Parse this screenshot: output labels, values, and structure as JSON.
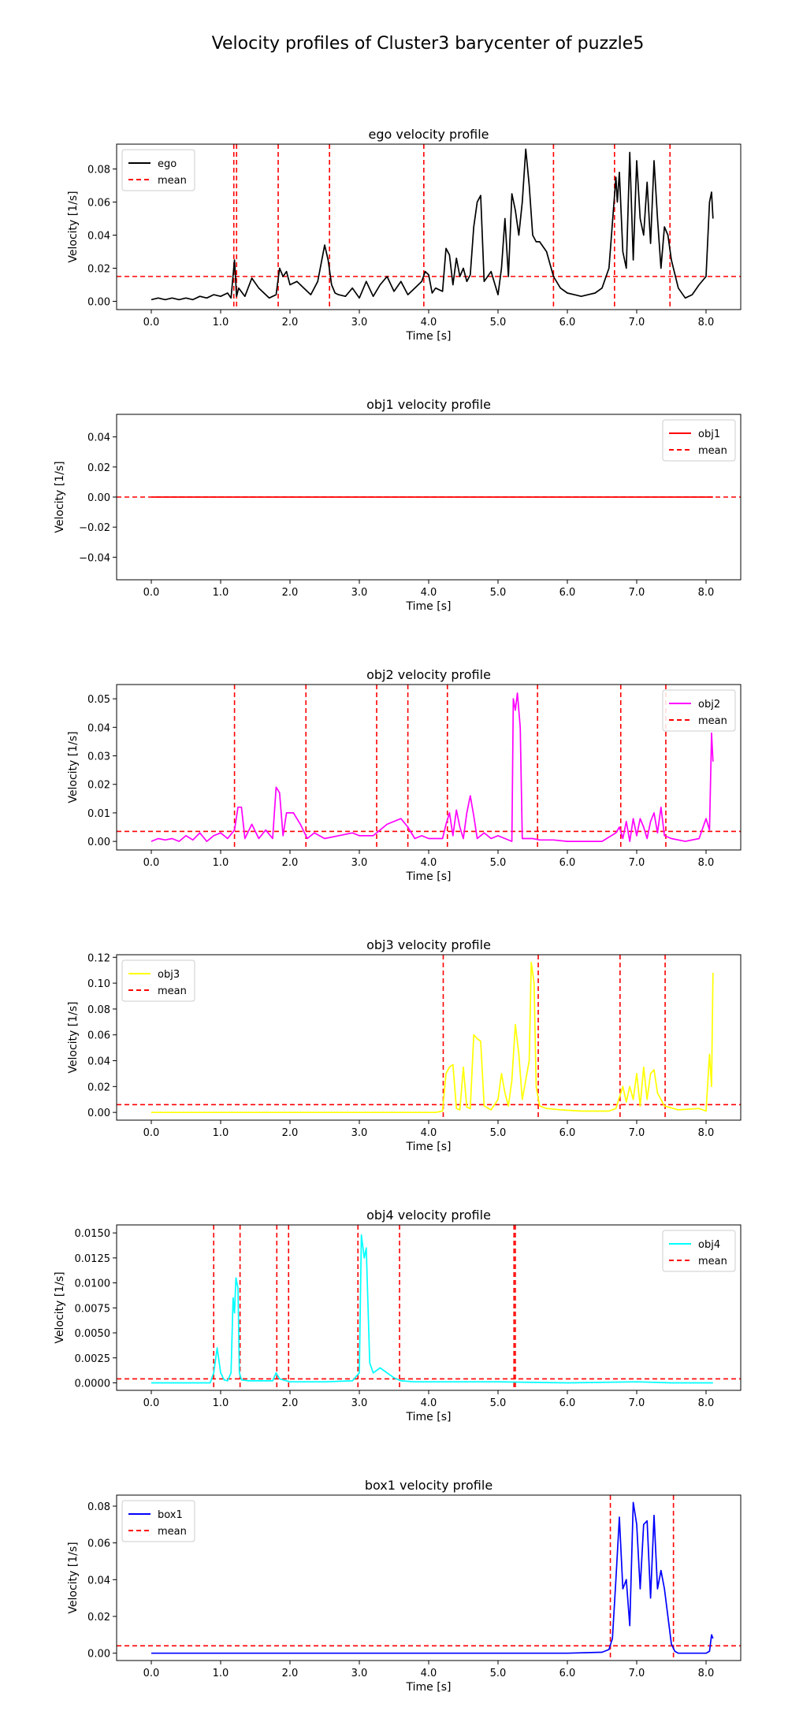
{
  "figure": {
    "title": "Velocity profiles of  Cluster3 barycenter of puzzle5"
  },
  "chart_data": [
    {
      "type": "line",
      "title": "ego velocity profile",
      "xlabel": "Time [s]",
      "ylabel": "Velocity [1/s]",
      "xlim": [
        -0.5,
        8.5
      ],
      "ylim": [
        -0.005,
        0.095
      ],
      "xticks": [
        0,
        1,
        2,
        3,
        4,
        5,
        6,
        7,
        8
      ],
      "xtick_labels": [
        "0.0",
        "1.0",
        "2.0",
        "3.0",
        "4.0",
        "5.0",
        "6.0",
        "7.0",
        "8.0"
      ],
      "yticks": [
        0,
        0.02,
        0.04,
        0.06,
        0.08
      ],
      "ytick_labels": [
        "0.00",
        "0.02",
        "0.04",
        "0.06",
        "0.08"
      ],
      "legend": {
        "position": "upper-left",
        "entries": [
          "ego",
          "mean"
        ]
      },
      "series": [
        {
          "name": "ego",
          "color": "#000000",
          "x": [
            0,
            0.1,
            0.2,
            0.3,
            0.4,
            0.5,
            0.6,
            0.7,
            0.8,
            0.9,
            1.0,
            1.1,
            1.15,
            1.2,
            1.23,
            1.26,
            1.35,
            1.45,
            1.55,
            1.7,
            1.8,
            1.85,
            1.9,
            1.95,
            2.0,
            2.1,
            2.2,
            2.3,
            2.4,
            2.5,
            2.55,
            2.6,
            2.65,
            2.7,
            2.8,
            2.9,
            3.0,
            3.1,
            3.2,
            3.3,
            3.4,
            3.5,
            3.6,
            3.7,
            3.8,
            3.9,
            3.95,
            4.0,
            4.05,
            4.1,
            4.2,
            4.25,
            4.3,
            4.35,
            4.4,
            4.45,
            4.5,
            4.55,
            4.6,
            4.65,
            4.7,
            4.75,
            4.8,
            4.9,
            5.0,
            5.05,
            5.1,
            5.15,
            5.2,
            5.25,
            5.3,
            5.35,
            5.4,
            5.45,
            5.5,
            5.55,
            5.6,
            5.7,
            5.8,
            5.9,
            6.0,
            6.1,
            6.2,
            6.3,
            6.4,
            6.5,
            6.6,
            6.7,
            6.72,
            6.75,
            6.8,
            6.85,
            6.9,
            6.95,
            7.0,
            7.05,
            7.1,
            7.15,
            7.2,
            7.25,
            7.3,
            7.35,
            7.4,
            7.45,
            7.5,
            7.6,
            7.7,
            7.8,
            7.9,
            8.0,
            8.05,
            8.08,
            8.1
          ],
          "y": [
            0.001,
            0.002,
            0.001,
            0.002,
            0.001,
            0.002,
            0.001,
            0.003,
            0.002,
            0.004,
            0.003,
            0.005,
            0.002,
            0.025,
            0.003,
            0.008,
            0.003,
            0.014,
            0.008,
            0.002,
            0.004,
            0.02,
            0.015,
            0.018,
            0.01,
            0.012,
            0.008,
            0.004,
            0.012,
            0.034,
            0.025,
            0.01,
            0.005,
            0.004,
            0.003,
            0.008,
            0.002,
            0.012,
            0.003,
            0.01,
            0.015,
            0.006,
            0.012,
            0.004,
            0.008,
            0.012,
            0.018,
            0.016,
            0.005,
            0.008,
            0.006,
            0.032,
            0.028,
            0.01,
            0.026,
            0.015,
            0.02,
            0.012,
            0.016,
            0.045,
            0.06,
            0.064,
            0.012,
            0.018,
            0.004,
            0.02,
            0.05,
            0.015,
            0.065,
            0.055,
            0.04,
            0.06,
            0.092,
            0.07,
            0.04,
            0.036,
            0.036,
            0.03,
            0.015,
            0.008,
            0.005,
            0.004,
            0.003,
            0.004,
            0.005,
            0.008,
            0.02,
            0.075,
            0.06,
            0.078,
            0.03,
            0.02,
            0.09,
            0.025,
            0.085,
            0.05,
            0.04,
            0.072,
            0.035,
            0.085,
            0.05,
            0.02,
            0.045,
            0.04,
            0.025,
            0.008,
            0.002,
            0.004,
            0.01,
            0.015,
            0.06,
            0.066,
            0.05
          ]
        },
        {
          "name": "mean",
          "color": "#ff0000",
          "dashed": true,
          "hline": 0.015
        }
      ],
      "vlines": [
        1.19,
        1.23,
        1.83,
        2.57,
        3.93,
        5.8,
        6.68,
        7.48
      ]
    },
    {
      "type": "line",
      "title": "obj1 velocity profile",
      "xlabel": "Time [s]",
      "ylabel": "Velocity [1/s]",
      "xlim": [
        -0.5,
        8.5
      ],
      "ylim": [
        -0.055,
        0.055
      ],
      "xticks": [
        0,
        1,
        2,
        3,
        4,
        5,
        6,
        7,
        8
      ],
      "xtick_labels": [
        "0.0",
        "1.0",
        "2.0",
        "3.0",
        "4.0",
        "5.0",
        "6.0",
        "7.0",
        "8.0"
      ],
      "yticks": [
        -0.04,
        -0.02,
        0,
        0.02,
        0.04
      ],
      "ytick_labels": [
        "−0.04",
        "−0.02",
        "0.00",
        "0.02",
        "0.04"
      ],
      "legend": {
        "position": "upper-right",
        "entries": [
          "obj1",
          "mean"
        ]
      },
      "series": [
        {
          "name": "obj1",
          "color": "#ff0000",
          "x": [
            0,
            8.1
          ],
          "y": [
            0,
            0
          ]
        },
        {
          "name": "mean",
          "color": "#ff0000",
          "dashed": true,
          "hline": 0
        }
      ],
      "vlines": []
    },
    {
      "type": "line",
      "title": "obj2 velocity profile",
      "xlabel": "Time [s]",
      "ylabel": "Velocity [1/s]",
      "xlim": [
        -0.5,
        8.5
      ],
      "ylim": [
        -0.003,
        0.055
      ],
      "xticks": [
        0,
        1,
        2,
        3,
        4,
        5,
        6,
        7,
        8
      ],
      "xtick_labels": [
        "0.0",
        "1.0",
        "2.0",
        "3.0",
        "4.0",
        "5.0",
        "6.0",
        "7.0",
        "8.0"
      ],
      "yticks": [
        0,
        0.01,
        0.02,
        0.03,
        0.04,
        0.05
      ],
      "ytick_labels": [
        "0.00",
        "0.01",
        "0.02",
        "0.03",
        "0.04",
        "0.05"
      ],
      "legend": {
        "position": "upper-right",
        "entries": [
          "obj2",
          "mean"
        ]
      },
      "series": [
        {
          "name": "obj2",
          "color": "#ff00ff",
          "x": [
            0,
            0.1,
            0.2,
            0.3,
            0.4,
            0.5,
            0.6,
            0.7,
            0.8,
            0.9,
            1.0,
            1.1,
            1.2,
            1.25,
            1.3,
            1.35,
            1.45,
            1.55,
            1.65,
            1.75,
            1.8,
            1.85,
            1.9,
            1.95,
            2.05,
            2.15,
            2.25,
            2.35,
            2.5,
            2.7,
            2.9,
            3.0,
            3.2,
            3.4,
            3.6,
            3.7,
            3.8,
            3.9,
            4.0,
            4.1,
            4.2,
            4.25,
            4.3,
            4.35,
            4.4,
            4.45,
            4.5,
            4.55,
            4.6,
            4.65,
            4.7,
            4.8,
            4.9,
            5.0,
            5.1,
            5.2,
            5.22,
            5.25,
            5.28,
            5.32,
            5.35,
            5.4,
            5.5,
            5.6,
            5.8,
            6.0,
            6.5,
            6.7,
            6.75,
            6.8,
            6.85,
            6.9,
            6.95,
            7.0,
            7.05,
            7.1,
            7.15,
            7.2,
            7.25,
            7.3,
            7.35,
            7.4,
            7.5,
            7.7,
            7.9,
            8.0,
            8.05,
            8.08,
            8.1
          ],
          "y": [
            0.0,
            0.001,
            0.0005,
            0.001,
            0.0,
            0.002,
            0.0005,
            0.003,
            0.0,
            0.002,
            0.003,
            0.001,
            0.004,
            0.012,
            0.012,
            0.001,
            0.006,
            0.001,
            0.004,
            0.001,
            0.019,
            0.017,
            0.002,
            0.01,
            0.01,
            0.006,
            0.001,
            0.003,
            0.001,
            0.002,
            0.003,
            0.002,
            0.002,
            0.006,
            0.008,
            0.005,
            0.001,
            0.002,
            0.001,
            0.001,
            0.001,
            0.006,
            0.01,
            0.002,
            0.011,
            0.005,
            0.001,
            0.01,
            0.016,
            0.009,
            0.001,
            0.003,
            0.001,
            0.002,
            0.001,
            0.0,
            0.05,
            0.046,
            0.052,
            0.04,
            0.001,
            0.001,
            0.001,
            0.0005,
            0.0005,
            0.0,
            0.0,
            0.003,
            0.005,
            0.001,
            0.007,
            0.0,
            0.008,
            0.002,
            0.008,
            0.005,
            0.001,
            0.007,
            0.01,
            0.003,
            0.012,
            0.002,
            0.001,
            0.0,
            0.001,
            0.008,
            0.004,
            0.038,
            0.028
          ]
        },
        {
          "name": "mean",
          "color": "#ff0000",
          "dashed": true,
          "hline": 0.0035
        }
      ],
      "vlines": [
        1.2,
        2.23,
        3.25,
        3.7,
        4.27,
        5.57,
        6.77,
        7.42
      ]
    },
    {
      "type": "line",
      "title": "obj3 velocity profile",
      "xlabel": "Time [s]",
      "ylabel": "Velocity [1/s]",
      "xlim": [
        -0.5,
        8.5
      ],
      "ylim": [
        -0.006,
        0.122
      ],
      "xticks": [
        0,
        1,
        2,
        3,
        4,
        5,
        6,
        7,
        8
      ],
      "xtick_labels": [
        "0.0",
        "1.0",
        "2.0",
        "3.0",
        "4.0",
        "5.0",
        "6.0",
        "7.0",
        "8.0"
      ],
      "yticks": [
        0,
        0.02,
        0.04,
        0.06,
        0.08,
        0.1,
        0.12
      ],
      "ytick_labels": [
        "0.00",
        "0.02",
        "0.04",
        "0.06",
        "0.08",
        "0.10",
        "0.12"
      ],
      "legend": {
        "position": "upper-left",
        "entries": [
          "obj3",
          "mean"
        ]
      },
      "series": [
        {
          "name": "obj3",
          "color": "#ffff00",
          "x": [
            0,
            1,
            2,
            3,
            3.8,
            4.1,
            4.2,
            4.25,
            4.3,
            4.35,
            4.4,
            4.45,
            4.5,
            4.55,
            4.6,
            4.65,
            4.7,
            4.75,
            4.8,
            4.9,
            5.0,
            5.05,
            5.1,
            5.15,
            5.2,
            5.25,
            5.3,
            5.35,
            5.4,
            5.45,
            5.48,
            5.52,
            5.55,
            5.6,
            5.7,
            5.9,
            6.2,
            6.6,
            6.7,
            6.8,
            6.85,
            6.9,
            6.95,
            7.0,
            7.05,
            7.1,
            7.15,
            7.2,
            7.25,
            7.3,
            7.4,
            7.6,
            7.9,
            8.0,
            8.05,
            8.08,
            8.1
          ],
          "y": [
            0.0,
            0.0,
            0.0,
            0.0,
            0.0,
            0.0,
            0.001,
            0.03,
            0.035,
            0.037,
            0.003,
            0.002,
            0.035,
            0.004,
            0.003,
            0.06,
            0.057,
            0.055,
            0.005,
            0.002,
            0.01,
            0.03,
            0.015,
            0.005,
            0.025,
            0.068,
            0.045,
            0.01,
            0.025,
            0.04,
            0.116,
            0.1,
            0.02,
            0.005,
            0.003,
            0.002,
            0.001,
            0.001,
            0.003,
            0.02,
            0.008,
            0.02,
            0.01,
            0.03,
            0.005,
            0.035,
            0.01,
            0.03,
            0.033,
            0.015,
            0.005,
            0.002,
            0.003,
            0.001,
            0.045,
            0.02,
            0.108
          ]
        },
        {
          "name": "mean",
          "color": "#ff0000",
          "dashed": true,
          "hline": 0.006
        }
      ],
      "vlines": [
        4.21,
        5.58,
        6.76,
        7.41
      ]
    },
    {
      "type": "line",
      "title": "obj4 velocity profile",
      "xlabel": "Time [s]",
      "ylabel": "Velocity [1/s]",
      "xlim": [
        -0.5,
        8.5
      ],
      "ylim": [
        -0.00075,
        0.0158
      ],
      "xticks": [
        0,
        1,
        2,
        3,
        4,
        5,
        6,
        7,
        8
      ],
      "xtick_labels": [
        "0.0",
        "1.0",
        "2.0",
        "3.0",
        "4.0",
        "5.0",
        "6.0",
        "7.0",
        "8.0"
      ],
      "yticks": [
        0,
        0.0025,
        0.005,
        0.0075,
        0.01,
        0.0125,
        0.015
      ],
      "ytick_labels": [
        "0.0000",
        "0.0025",
        "0.0050",
        "0.0075",
        "0.0100",
        "0.0125",
        "0.0150"
      ],
      "legend": {
        "position": "upper-right",
        "entries": [
          "obj4",
          "mean"
        ]
      },
      "series": [
        {
          "name": "obj4",
          "color": "#00ffff",
          "x": [
            0,
            0.5,
            0.85,
            0.9,
            0.95,
            1.0,
            1.05,
            1.1,
            1.15,
            1.18,
            1.2,
            1.22,
            1.25,
            1.27,
            1.3,
            1.4,
            1.6,
            1.75,
            1.8,
            1.85,
            1.9,
            2.0,
            2.5,
            2.9,
            3.0,
            3.03,
            3.07,
            3.1,
            3.15,
            3.2,
            3.3,
            3.4,
            3.5,
            3.6,
            3.8,
            4.5,
            5.0,
            6.0,
            7.0,
            7.5,
            8.1
          ],
          "y": [
            0.0,
            0.0,
            0.0,
            0.001,
            0.0035,
            0.001,
            0.0003,
            0.0002,
            0.001,
            0.0085,
            0.007,
            0.0105,
            0.0095,
            0.001,
            0.0003,
            0.0002,
            0.0002,
            0.0002,
            0.001,
            0.0004,
            0.0003,
            0.0001,
            0.0001,
            0.0002,
            0.001,
            0.0148,
            0.0125,
            0.0135,
            0.002,
            0.001,
            0.0015,
            0.001,
            0.0005,
            0.0002,
            0.0001,
            0.0001,
            0.0001,
            0.0,
            0.0001,
            0.0,
            0.0
          ]
        },
        {
          "name": "mean",
          "color": "#ff0000",
          "dashed": true,
          "hline": 0.0004
        }
      ],
      "vlines": [
        0.9,
        1.28,
        1.81,
        1.98,
        2.98,
        3.58,
        5.23,
        5.25
      ]
    },
    {
      "type": "line",
      "title": "box1 velocity profile",
      "xlabel": "Time [s]",
      "ylabel": "Velocity [1/s]",
      "xlim": [
        -0.5,
        8.5
      ],
      "ylim": [
        -0.004,
        0.086
      ],
      "xticks": [
        0,
        1,
        2,
        3,
        4,
        5,
        6,
        7,
        8
      ],
      "xtick_labels": [
        "0.0",
        "1.0",
        "2.0",
        "3.0",
        "4.0",
        "5.0",
        "6.0",
        "7.0",
        "8.0"
      ],
      "yticks": [
        0,
        0.02,
        0.04,
        0.06,
        0.08
      ],
      "ytick_labels": [
        "0.00",
        "0.02",
        "0.04",
        "0.06",
        "0.08"
      ],
      "legend": {
        "position": "upper-left",
        "entries": [
          "box1",
          "mean"
        ]
      },
      "series": [
        {
          "name": "box1",
          "color": "#0000ff",
          "x": [
            0,
            1,
            2,
            3,
            4,
            5,
            6,
            6.5,
            6.6,
            6.65,
            6.7,
            6.75,
            6.8,
            6.85,
            6.9,
            6.95,
            7.0,
            7.05,
            7.1,
            7.15,
            7.2,
            7.25,
            7.3,
            7.35,
            7.4,
            7.45,
            7.5,
            7.55,
            7.6,
            7.8,
            8.0,
            8.05,
            8.08,
            8.1
          ],
          "y": [
            0.0,
            0.0,
            0.0,
            0.0,
            0.0,
            0.0,
            0.0,
            0.0005,
            0.002,
            0.008,
            0.04,
            0.074,
            0.035,
            0.04,
            0.015,
            0.082,
            0.07,
            0.035,
            0.07,
            0.072,
            0.03,
            0.075,
            0.035,
            0.045,
            0.035,
            0.02,
            0.005,
            0.001,
            0.0,
            0.0,
            0.0,
            0.001,
            0.01,
            0.008
          ]
        },
        {
          "name": "mean",
          "color": "#ff0000",
          "dashed": true,
          "hline": 0.004
        }
      ],
      "vlines": [
        6.62,
        7.53
      ]
    }
  ]
}
